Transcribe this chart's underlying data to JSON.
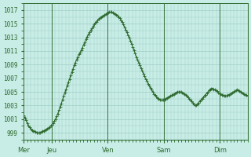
{
  "bg_color": "#c8ece6",
  "plot_bg_color": "#c8ece6",
  "line_color": "#2d6a2d",
  "marker": "+",
  "marker_size": 2.5,
  "line_width": 0.8,
  "ylim": [
    998.0,
    1018.0
  ],
  "yticks": [
    999,
    1001,
    1003,
    1005,
    1007,
    1009,
    1011,
    1013,
    1015,
    1017
  ],
  "ytick_labels": [
    "999",
    "1001",
    "1003",
    "1005",
    "1007",
    "1009",
    "1011",
    "1013",
    "1015",
    "1017"
  ],
  "day_labels": [
    "Mer",
    "Jeu",
    "Ven",
    "Sam",
    "Dim"
  ],
  "day_positions": [
    0,
    24,
    72,
    120,
    168
  ],
  "vline_positions": [
    24,
    72,
    120,
    168
  ],
  "grid_color": "#9ecec6",
  "label_color": "#2d6a2d",
  "total_hours": 192,
  "pressure_data": [
    1001.5,
    1001.2,
    1000.8,
    1000.4,
    1000.0,
    999.8,
    999.6,
    999.4,
    999.3,
    999.2,
    999.1,
    999.0,
    999.0,
    999.0,
    999.0,
    999.1,
    999.2,
    999.3,
    999.4,
    999.5,
    999.6,
    999.7,
    999.8,
    1000.0,
    1000.2,
    1000.4,
    1000.7,
    1001.0,
    1001.4,
    1001.8,
    1002.3,
    1002.8,
    1003.3,
    1003.8,
    1004.4,
    1004.9,
    1005.4,
    1005.9,
    1006.4,
    1006.9,
    1007.4,
    1007.9,
    1008.4,
    1008.9,
    1009.3,
    1009.7,
    1010.1,
    1010.5,
    1010.8,
    1011.1,
    1011.5,
    1011.9,
    1012.3,
    1012.7,
    1013.1,
    1013.4,
    1013.7,
    1014.0,
    1014.3,
    1014.6,
    1014.9,
    1015.1,
    1015.3,
    1015.5,
    1015.7,
    1015.8,
    1016.0,
    1016.1,
    1016.2,
    1016.3,
    1016.4,
    1016.5,
    1016.6,
    1016.7,
    1016.7,
    1016.7,
    1016.6,
    1016.5,
    1016.4,
    1016.3,
    1016.2,
    1016.0,
    1015.8,
    1015.5,
    1015.2,
    1014.9,
    1014.5,
    1014.1,
    1013.7,
    1013.3,
    1012.9,
    1012.5,
    1012.0,
    1011.6,
    1011.1,
    1010.6,
    1010.1,
    1009.7,
    1009.3,
    1008.9,
    1008.5,
    1008.1,
    1007.7,
    1007.3,
    1006.9,
    1006.6,
    1006.2,
    1005.9,
    1005.6,
    1005.3,
    1005.0,
    1004.7,
    1004.5,
    1004.3,
    1004.1,
    1004.0,
    1003.9,
    1003.8,
    1003.8,
    1003.8,
    1003.9,
    1004.0,
    1004.1,
    1004.2,
    1004.3,
    1004.4,
    1004.5,
    1004.6,
    1004.7,
    1004.8,
    1004.9,
    1005.0,
    1005.0,
    1005.0,
    1005.0,
    1004.9,
    1004.8,
    1004.7,
    1004.6,
    1004.4,
    1004.2,
    1004.0,
    1003.8,
    1003.6,
    1003.4,
    1003.2,
    1003.0,
    1003.1,
    1003.2,
    1003.4,
    1003.6,
    1003.8,
    1004.0,
    1004.2,
    1004.4,
    1004.6,
    1004.8,
    1005.0,
    1005.2,
    1005.4,
    1005.5,
    1005.5,
    1005.4,
    1005.3,
    1005.2,
    1005.1,
    1004.9,
    1004.8,
    1004.7,
    1004.6,
    1004.5,
    1004.4,
    1004.4,
    1004.4,
    1004.5,
    1004.6,
    1004.7,
    1004.8,
    1004.9,
    1005.0,
    1005.1,
    1005.2,
    1005.3,
    1005.2,
    1005.1,
    1005.0,
    1004.9,
    1004.8,
    1004.7,
    1004.6,
    1004.5,
    1004.4
  ]
}
